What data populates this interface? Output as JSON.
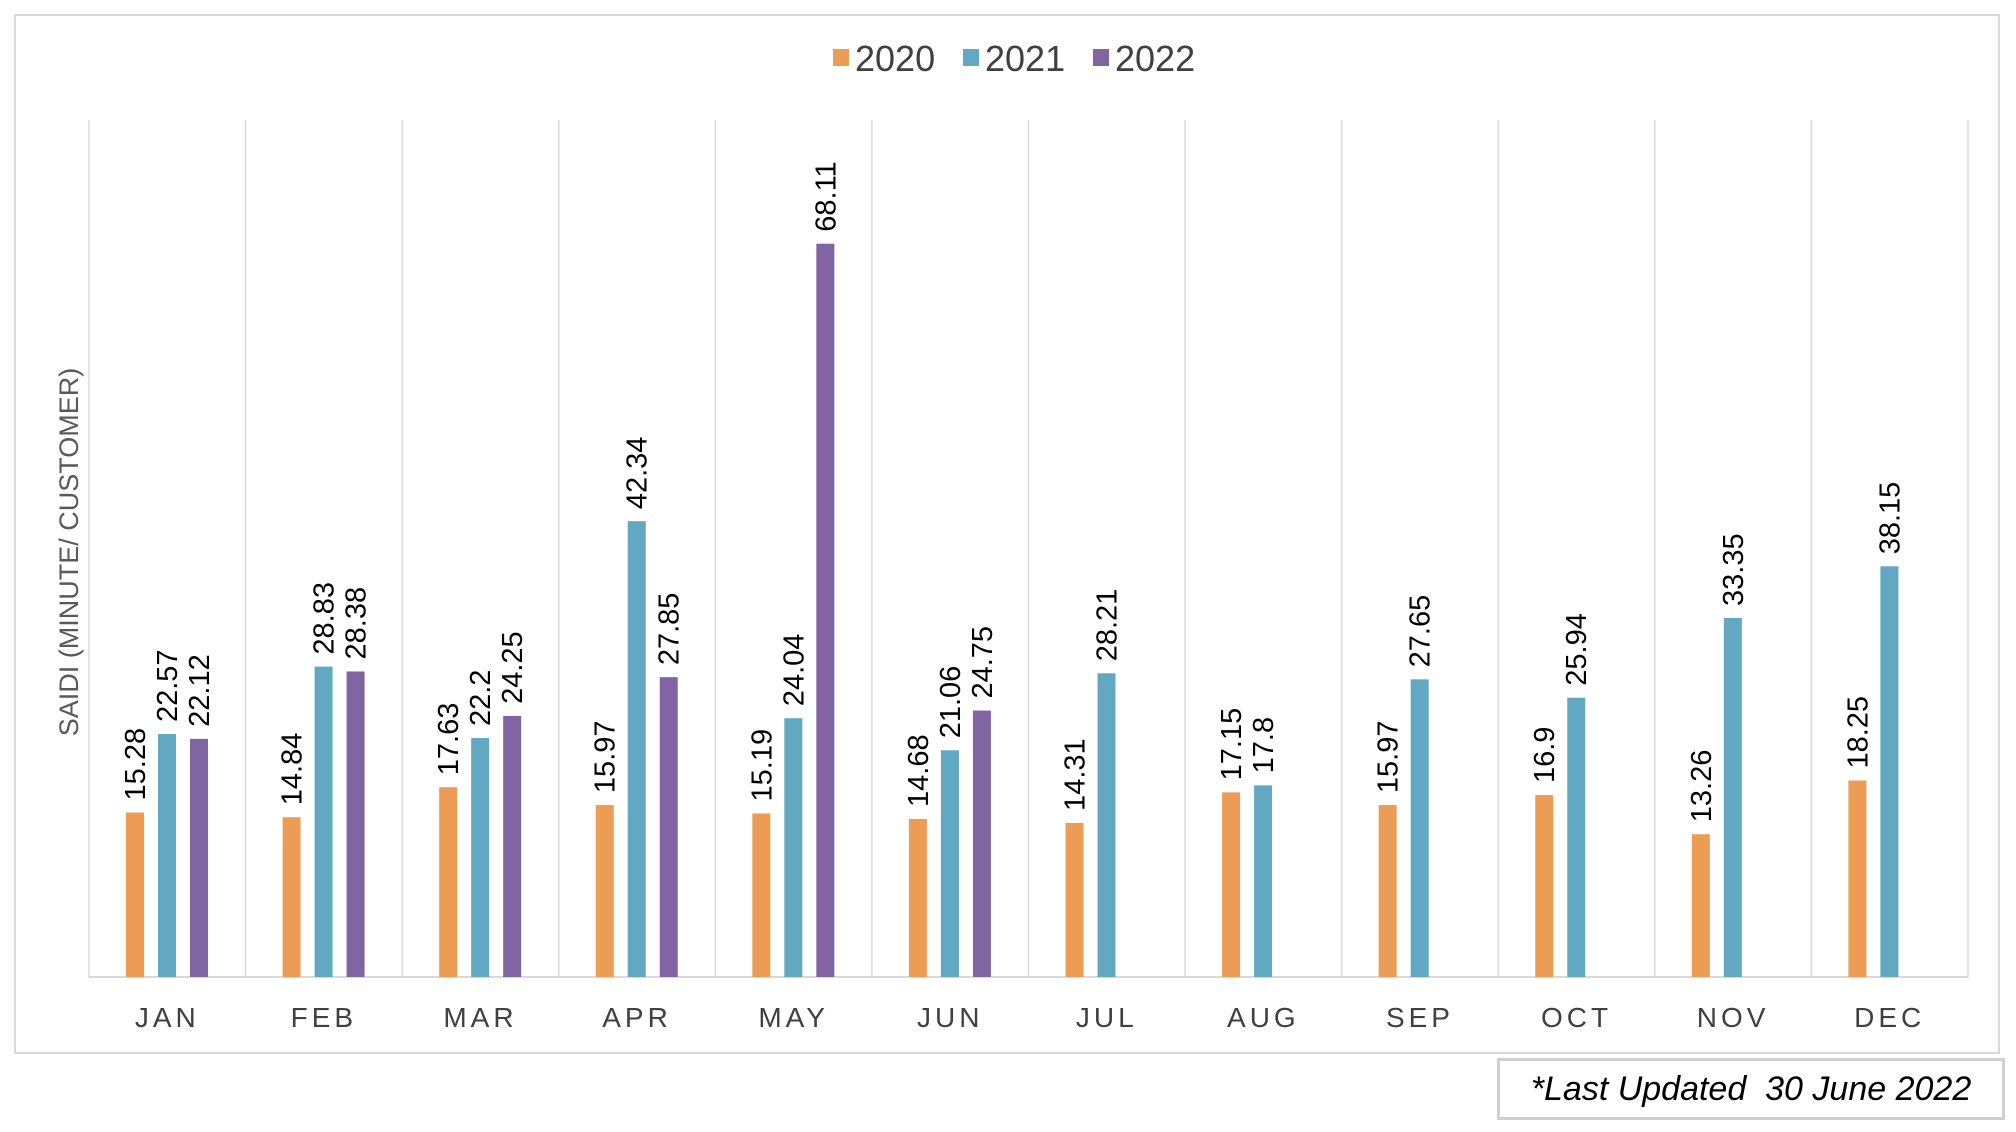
{
  "chart_data": {
    "type": "bar",
    "categories": [
      "JAN",
      "FEB",
      "MAR",
      "APR",
      "MAY",
      "JUN",
      "JUL",
      "AUG",
      "SEP",
      "OCT",
      "NOV",
      "DEC"
    ],
    "series": [
      {
        "name": "2020",
        "color": "#ED9C55",
        "values": [
          15.28,
          14.84,
          17.63,
          15.97,
          15.19,
          14.68,
          14.31,
          17.15,
          15.97,
          16.9,
          13.26,
          18.25
        ],
        "labels": [
          "15.28",
          "14.84",
          "17.63",
          "15.97",
          "15.19",
          "14.68",
          "14.31",
          "17.15",
          "15.97",
          "16.9",
          "13.26",
          "18.25"
        ]
      },
      {
        "name": "2021",
        "color": "#62A8C2",
        "values": [
          22.57,
          28.83,
          22.2,
          42.34,
          24.04,
          21.06,
          28.21,
          17.8,
          27.65,
          25.94,
          33.35,
          38.15
        ],
        "labels": [
          "22.57",
          "28.83",
          "22.2",
          "42.34",
          "24.04",
          "21.06",
          "28.21",
          "17.8",
          "27.65",
          "25.94",
          "33.35",
          "38.15"
        ]
      },
      {
        "name": "2022",
        "color": "#8065A2",
        "values": [
          22.12,
          28.38,
          24.25,
          27.85,
          68.11,
          24.75,
          null,
          null,
          null,
          null,
          null,
          null
        ],
        "labels": [
          "22.12",
          "28.38",
          "24.25",
          "27.85",
          "68.11",
          "24.75",
          null,
          null,
          null,
          null,
          null,
          null
        ]
      }
    ],
    "ylabel": "SAIDI (MINUTE/ CUSTOMER)",
    "ylim": [
      0,
      80
    ],
    "grid": "vertical category separators",
    "legend": "top-center"
  },
  "note": "*Last Updated  30 June 2022"
}
